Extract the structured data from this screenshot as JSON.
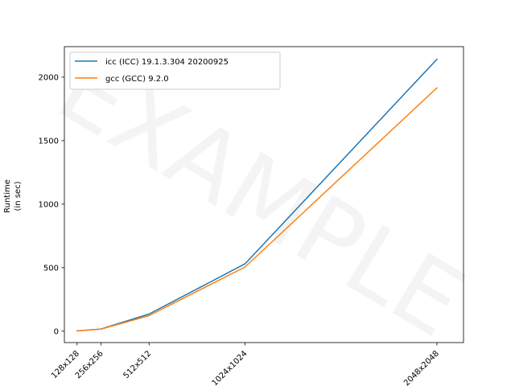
{
  "chart_data": {
    "type": "line",
    "watermark": "EXAMPLE",
    "ylabel": [
      "Runtime",
      "(in sec)"
    ],
    "xlabel": "",
    "x": [
      128,
      256,
      512,
      1024,
      2048
    ],
    "xticklabels": [
      "128x128",
      "256x256",
      "512x512",
      "1024x1024",
      "2048x2048"
    ],
    "xlim": [
      60,
      2190
    ],
    "ylim": [
      -90,
      2240
    ],
    "yticks": [
      0,
      500,
      1000,
      1500,
      2000
    ],
    "legend_position": "upper-left",
    "grid": false,
    "series": [
      {
        "name": "icc (ICC) 19.1.3.304 20200925",
        "color": "#1f77b4",
        "values": [
          2,
          17,
          135,
          530,
          2140
        ]
      },
      {
        "name": "gcc (GCC) 9.2.0",
        "color": "#ff7f0e",
        "values": [
          2,
          16,
          122,
          505,
          1915
        ]
      }
    ]
  }
}
